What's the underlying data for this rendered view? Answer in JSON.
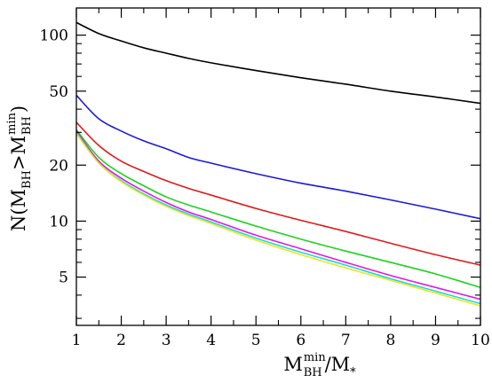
{
  "chart_data": {
    "type": "line",
    "xlabel": {
      "base": "M",
      "sup": "min",
      "sub": "BH",
      "slash": "/",
      "denom_base": "M",
      "denom_sub": "*"
    },
    "ylabel": {
      "prefix": "N(",
      "m1": "M",
      "m1_sub": "BH",
      "op": ">",
      "m2": "M",
      "m2_sup": "min",
      "m2_sub": "BH",
      "suffix": ")"
    },
    "xlim": [
      1,
      10
    ],
    "ylim": [
      2.75,
      140
    ],
    "yscale": "log",
    "x_ticks": [
      1,
      2,
      3,
      4,
      5,
      6,
      7,
      8,
      9,
      10
    ],
    "x_tick_labels": [
      "1",
      "2",
      "3",
      "4",
      "5",
      "6",
      "7",
      "8",
      "9",
      "10"
    ],
    "y_ticks": [
      5,
      10,
      20,
      50,
      100
    ],
    "y_tick_labels": [
      "5",
      "10",
      "20",
      "50",
      "100"
    ],
    "y_minor_ticks": [
      3,
      4,
      6,
      7,
      8,
      9,
      30,
      40,
      60,
      70,
      80,
      90
    ],
    "grid": false,
    "x": [
      1,
      1.5,
      2,
      2.5,
      3,
      3.5,
      4,
      5,
      6,
      7,
      8,
      9,
      10
    ],
    "series": [
      {
        "color": "#000000",
        "values": [
          117,
          102,
          93,
          85.5,
          80,
          75,
          71,
          64.5,
          59,
          54.5,
          50,
          46.5,
          43
        ]
      },
      {
        "color": "#1a1adb",
        "values": [
          47.5,
          35.5,
          30.5,
          27,
          24.5,
          22,
          20.5,
          18,
          16,
          14.5,
          13,
          11.6,
          10.3
        ]
      },
      {
        "color": "#e01a1a",
        "values": [
          34,
          25.5,
          21,
          18.5,
          16.5,
          15,
          13.8,
          11.7,
          10.1,
          8.8,
          7.6,
          6.6,
          5.8
        ]
      },
      {
        "color": "#1fd11f",
        "values": [
          31,
          22,
          18,
          15.5,
          13.5,
          12.2,
          11.2,
          9.4,
          8.0,
          6.9,
          6.0,
          5.2,
          4.4
        ]
      },
      {
        "color": "#e01ae0",
        "values": [
          30.5,
          21,
          17,
          14.5,
          12.6,
          11.2,
          10.2,
          8.4,
          7.1,
          6.0,
          5.1,
          4.4,
          3.8
        ]
      },
      {
        "color": "#1ad8e0",
        "values": [
          30,
          20.5,
          16.5,
          14,
          12.2,
          10.9,
          9.9,
          8.1,
          6.8,
          5.8,
          4.9,
          4.2,
          3.6
        ]
      },
      {
        "color": "#e8e81a",
        "values": [
          29.5,
          20.5,
          16.3,
          13.8,
          12.0,
          10.7,
          9.7,
          7.9,
          6.6,
          5.6,
          4.8,
          4.1,
          3.5
        ]
      }
    ]
  }
}
